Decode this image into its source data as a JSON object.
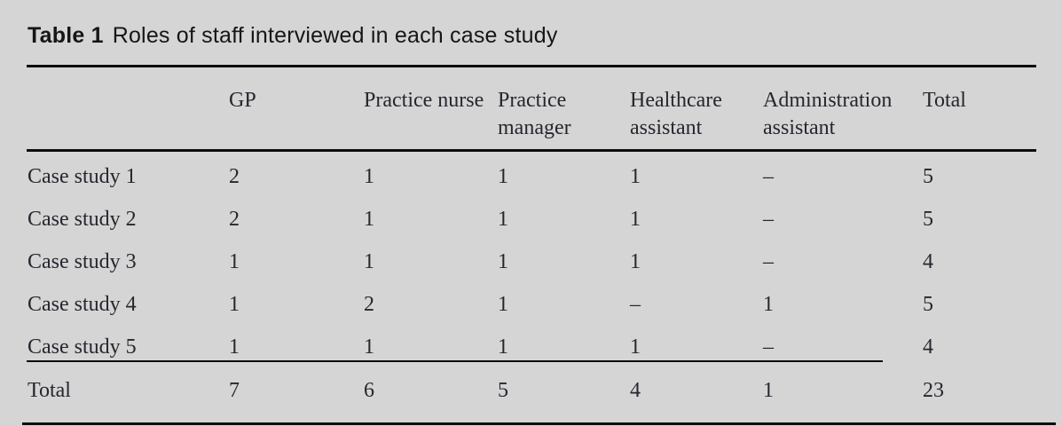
{
  "caption": {
    "label": "Table 1",
    "text": "Roles of staff interviewed in each case study"
  },
  "table": {
    "row_header_blank": "",
    "columns": [
      "GP",
      "Practice nurse",
      "Practice manager",
      "Healthcare assistant",
      "Administration assistant",
      "Total"
    ],
    "rows": [
      {
        "label": "Case study 1",
        "values": [
          "2",
          "1",
          "1",
          "1",
          "–",
          "5"
        ]
      },
      {
        "label": "Case study 2",
        "values": [
          "2",
          "1",
          "1",
          "1",
          "–",
          "5"
        ]
      },
      {
        "label": "Case study 3",
        "values": [
          "1",
          "1",
          "1",
          "1",
          "–",
          "4"
        ]
      },
      {
        "label": "Case study 4",
        "values": [
          "1",
          "2",
          "1",
          "–",
          "1",
          "5"
        ]
      },
      {
        "label": "Case study 5",
        "values": [
          "1",
          "1",
          "1",
          "1",
          "–",
          "4"
        ]
      }
    ],
    "total_row": {
      "label": "Total",
      "values": [
        "7",
        "6",
        "5",
        "4",
        "1",
        "23"
      ]
    }
  },
  "colors": {
    "background": "#d5d5d6",
    "rule": "#0d0d0d",
    "body_text": "#26262e",
    "caption_text": "#161618"
  }
}
